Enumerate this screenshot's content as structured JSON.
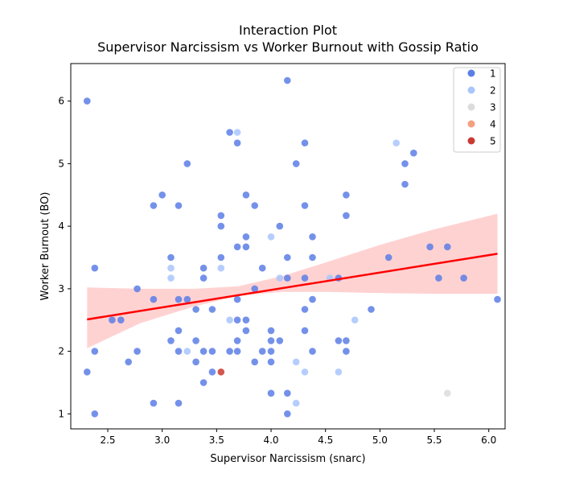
{
  "chart_data": {
    "type": "scatter",
    "title": [
      "Interaction Plot",
      "Supervisor Narcissism vs Worker Burnout with Gossip Ratio"
    ],
    "xlabel": "Supervisor Narcissism (snarc)",
    "ylabel": "Worker Burnout (BO)",
    "xlim": [
      2.16,
      6.15
    ],
    "ylim": [
      0.76,
      6.6
    ],
    "xticks": [
      2.5,
      3.0,
      3.5,
      4.0,
      4.5,
      5.0,
      5.5,
      6.0
    ],
    "xtick_labels": [
      "2.5",
      "3.0",
      "3.5",
      "4.0",
      "4.5",
      "5.0",
      "5.5",
      "6.0"
    ],
    "yticks": [
      1,
      2,
      3,
      4,
      5,
      6
    ],
    "ytick_labels": [
      "1",
      "2",
      "3",
      "4",
      "5",
      "6"
    ],
    "grid": false,
    "legend": {
      "placement": "top-right",
      "entries": [
        {
          "label": "1",
          "color": "#5c7ee6"
        },
        {
          "label": "2",
          "color": "#a9c6fd"
        },
        {
          "label": "3",
          "color": "#dddcdc"
        },
        {
          "label": "4",
          "color": "#f4a081"
        },
        {
          "label": "5",
          "color": "#c93a31"
        }
      ]
    },
    "regression": {
      "color": "#ff0000",
      "ci_color": "#ffd2d2",
      "x_range": [
        2.31,
        6.08
      ],
      "line_y": [
        2.51,
        3.56
      ],
      "ci_x": [
        2.31,
        2.8,
        3.3,
        3.7,
        4.1,
        4.5,
        5.0,
        5.5,
        6.08
      ],
      "ci_upper": [
        3.02,
        3.0,
        3.0,
        3.04,
        3.2,
        3.42,
        3.7,
        3.95,
        4.2
      ],
      "ci_lower": [
        2.05,
        2.45,
        2.72,
        2.89,
        2.95,
        2.95,
        2.93,
        2.92,
        2.92
      ]
    },
    "points": [
      {
        "x": 2.31,
        "y": 6.0,
        "g": 1
      },
      {
        "x": 2.31,
        "y": 1.67,
        "g": 1
      },
      {
        "x": 2.38,
        "y": 3.33,
        "g": 1
      },
      {
        "x": 2.38,
        "y": 2.0,
        "g": 1
      },
      {
        "x": 2.38,
        "y": 1.0,
        "g": 1
      },
      {
        "x": 2.54,
        "y": 2.5,
        "g": 1
      },
      {
        "x": 2.62,
        "y": 2.5,
        "g": 1
      },
      {
        "x": 2.69,
        "y": 1.83,
        "g": 1
      },
      {
        "x": 2.77,
        "y": 3.0,
        "g": 1
      },
      {
        "x": 2.77,
        "y": 2.0,
        "g": 1
      },
      {
        "x": 2.92,
        "y": 4.33,
        "g": 1
      },
      {
        "x": 2.92,
        "y": 2.83,
        "g": 1
      },
      {
        "x": 2.92,
        "y": 1.17,
        "g": 1
      },
      {
        "x": 3.0,
        "y": 4.5,
        "g": 1
      },
      {
        "x": 3.08,
        "y": 3.5,
        "g": 1
      },
      {
        "x": 3.08,
        "y": 3.33,
        "g": 2
      },
      {
        "x": 3.08,
        "y": 3.17,
        "g": 2
      },
      {
        "x": 3.08,
        "y": 2.17,
        "g": 1
      },
      {
        "x": 3.15,
        "y": 4.33,
        "g": 1
      },
      {
        "x": 3.15,
        "y": 2.83,
        "g": 1
      },
      {
        "x": 3.15,
        "y": 2.33,
        "g": 1
      },
      {
        "x": 3.15,
        "y": 2.0,
        "g": 1
      },
      {
        "x": 3.15,
        "y": 1.17,
        "g": 1
      },
      {
        "x": 3.23,
        "y": 5.0,
        "g": 1
      },
      {
        "x": 3.23,
        "y": 2.83,
        "g": 1
      },
      {
        "x": 3.23,
        "y": 2.0,
        "g": 2
      },
      {
        "x": 3.31,
        "y": 2.67,
        "g": 1
      },
      {
        "x": 3.31,
        "y": 2.17,
        "g": 1
      },
      {
        "x": 3.31,
        "y": 1.83,
        "g": 1
      },
      {
        "x": 3.38,
        "y": 3.33,
        "g": 1
      },
      {
        "x": 3.38,
        "y": 3.17,
        "g": 1
      },
      {
        "x": 3.38,
        "y": 2.0,
        "g": 1
      },
      {
        "x": 3.38,
        "y": 1.5,
        "g": 1
      },
      {
        "x": 3.46,
        "y": 2.67,
        "g": 1
      },
      {
        "x": 3.46,
        "y": 2.0,
        "g": 1
      },
      {
        "x": 3.46,
        "y": 1.67,
        "g": 1
      },
      {
        "x": 3.54,
        "y": 4.17,
        "g": 1
      },
      {
        "x": 3.54,
        "y": 4.0,
        "g": 1
      },
      {
        "x": 3.54,
        "y": 3.5,
        "g": 1
      },
      {
        "x": 3.54,
        "y": 3.33,
        "g": 2
      },
      {
        "x": 3.54,
        "y": 1.67,
        "g": 5
      },
      {
        "x": 3.62,
        "y": 5.5,
        "g": 1
      },
      {
        "x": 3.62,
        "y": 2.5,
        "g": 2
      },
      {
        "x": 3.62,
        "y": 2.0,
        "g": 1
      },
      {
        "x": 3.69,
        "y": 5.5,
        "g": 2
      },
      {
        "x": 3.69,
        "y": 5.33,
        "g": 1
      },
      {
        "x": 3.69,
        "y": 3.67,
        "g": 1
      },
      {
        "x": 3.69,
        "y": 2.83,
        "g": 1
      },
      {
        "x": 3.69,
        "y": 2.5,
        "g": 1
      },
      {
        "x": 3.69,
        "y": 2.17,
        "g": 1
      },
      {
        "x": 3.69,
        "y": 2.0,
        "g": 1
      },
      {
        "x": 3.77,
        "y": 4.5,
        "g": 1
      },
      {
        "x": 3.77,
        "y": 3.83,
        "g": 1
      },
      {
        "x": 3.77,
        "y": 3.67,
        "g": 1
      },
      {
        "x": 3.77,
        "y": 2.5,
        "g": 1
      },
      {
        "x": 3.77,
        "y": 2.33,
        "g": 1
      },
      {
        "x": 3.85,
        "y": 4.33,
        "g": 1
      },
      {
        "x": 3.85,
        "y": 3.0,
        "g": 1
      },
      {
        "x": 3.85,
        "y": 1.83,
        "g": 1
      },
      {
        "x": 3.92,
        "y": 3.33,
        "g": 1
      },
      {
        "x": 3.92,
        "y": 2.0,
        "g": 1
      },
      {
        "x": 4.0,
        "y": 3.83,
        "g": 2
      },
      {
        "x": 4.0,
        "y": 2.33,
        "g": 1
      },
      {
        "x": 4.0,
        "y": 2.17,
        "g": 1
      },
      {
        "x": 4.0,
        "y": 2.0,
        "g": 1
      },
      {
        "x": 4.0,
        "y": 1.83,
        "g": 1
      },
      {
        "x": 4.0,
        "y": 1.33,
        "g": 1
      },
      {
        "x": 4.08,
        "y": 4.0,
        "g": 1
      },
      {
        "x": 4.08,
        "y": 3.17,
        "g": 2
      },
      {
        "x": 4.08,
        "y": 2.17,
        "g": 1
      },
      {
        "x": 4.15,
        "y": 6.33,
        "g": 1
      },
      {
        "x": 4.15,
        "y": 3.5,
        "g": 1
      },
      {
        "x": 4.15,
        "y": 3.17,
        "g": 1
      },
      {
        "x": 4.15,
        "y": 1.33,
        "g": 1
      },
      {
        "x": 4.15,
        "y": 1.0,
        "g": 1
      },
      {
        "x": 4.23,
        "y": 5.0,
        "g": 1
      },
      {
        "x": 4.23,
        "y": 1.83,
        "g": 2
      },
      {
        "x": 4.23,
        "y": 1.17,
        "g": 2
      },
      {
        "x": 4.31,
        "y": 5.33,
        "g": 1
      },
      {
        "x": 4.31,
        "y": 4.33,
        "g": 1
      },
      {
        "x": 4.31,
        "y": 3.17,
        "g": 1
      },
      {
        "x": 4.31,
        "y": 2.67,
        "g": 1
      },
      {
        "x": 4.31,
        "y": 2.33,
        "g": 1
      },
      {
        "x": 4.31,
        "y": 1.67,
        "g": 2
      },
      {
        "x": 4.38,
        "y": 3.83,
        "g": 1
      },
      {
        "x": 4.38,
        "y": 3.5,
        "g": 1
      },
      {
        "x": 4.38,
        "y": 2.83,
        "g": 1
      },
      {
        "x": 4.38,
        "y": 2.0,
        "g": 1
      },
      {
        "x": 4.54,
        "y": 3.17,
        "g": 2
      },
      {
        "x": 4.62,
        "y": 3.17,
        "g": 1
      },
      {
        "x": 4.62,
        "y": 2.17,
        "g": 1
      },
      {
        "x": 4.62,
        "y": 1.67,
        "g": 2
      },
      {
        "x": 4.69,
        "y": 4.5,
        "g": 1
      },
      {
        "x": 4.69,
        "y": 4.17,
        "g": 1
      },
      {
        "x": 4.69,
        "y": 2.17,
        "g": 1
      },
      {
        "x": 4.69,
        "y": 2.0,
        "g": 1
      },
      {
        "x": 4.77,
        "y": 2.5,
        "g": 2
      },
      {
        "x": 4.92,
        "y": 2.67,
        "g": 1
      },
      {
        "x": 5.08,
        "y": 3.5,
        "g": 1
      },
      {
        "x": 5.15,
        "y": 5.33,
        "g": 2
      },
      {
        "x": 5.23,
        "y": 5.0,
        "g": 1
      },
      {
        "x": 5.23,
        "y": 4.67,
        "g": 1
      },
      {
        "x": 5.31,
        "y": 5.17,
        "g": 1
      },
      {
        "x": 5.46,
        "y": 3.67,
        "g": 1
      },
      {
        "x": 5.54,
        "y": 3.17,
        "g": 1
      },
      {
        "x": 5.62,
        "y": 3.67,
        "g": 1
      },
      {
        "x": 5.62,
        "y": 1.33,
        "g": 3
      },
      {
        "x": 5.77,
        "y": 3.17,
        "g": 1
      },
      {
        "x": 6.08,
        "y": 2.83,
        "g": 1
      }
    ]
  }
}
